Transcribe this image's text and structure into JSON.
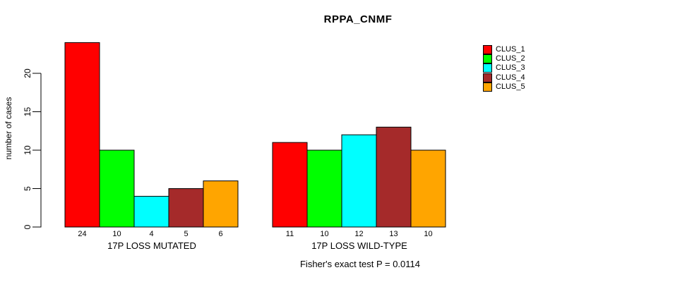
{
  "chart_data": {
    "type": "bar",
    "title": "RPPA_CNMF",
    "ylabel": "number of cases",
    "xlabel": "",
    "ylim": [
      0,
      24
    ],
    "yticks": [
      0,
      5,
      10,
      15,
      20
    ],
    "grid": false,
    "legend_position": "right-outside",
    "series": [
      "CLUS_1",
      "CLUS_2",
      "CLUS_3",
      "CLUS_4",
      "CLUS_5"
    ],
    "series_colors": [
      "#FF0000",
      "#00FF00",
      "#00FFFF",
      "#A52A2A",
      "#FFA500"
    ],
    "bar_border_color": "#000000",
    "groups": [
      {
        "label": "17P LOSS MUTATED",
        "values": [
          24,
          10,
          4,
          5,
          6
        ]
      },
      {
        "label": "17P LOSS WILD-TYPE",
        "values": [
          11,
          10,
          12,
          13,
          10
        ]
      }
    ],
    "bar_value_labels_shown": true,
    "annotation": "Fisher's exact test P = 0.0114"
  }
}
